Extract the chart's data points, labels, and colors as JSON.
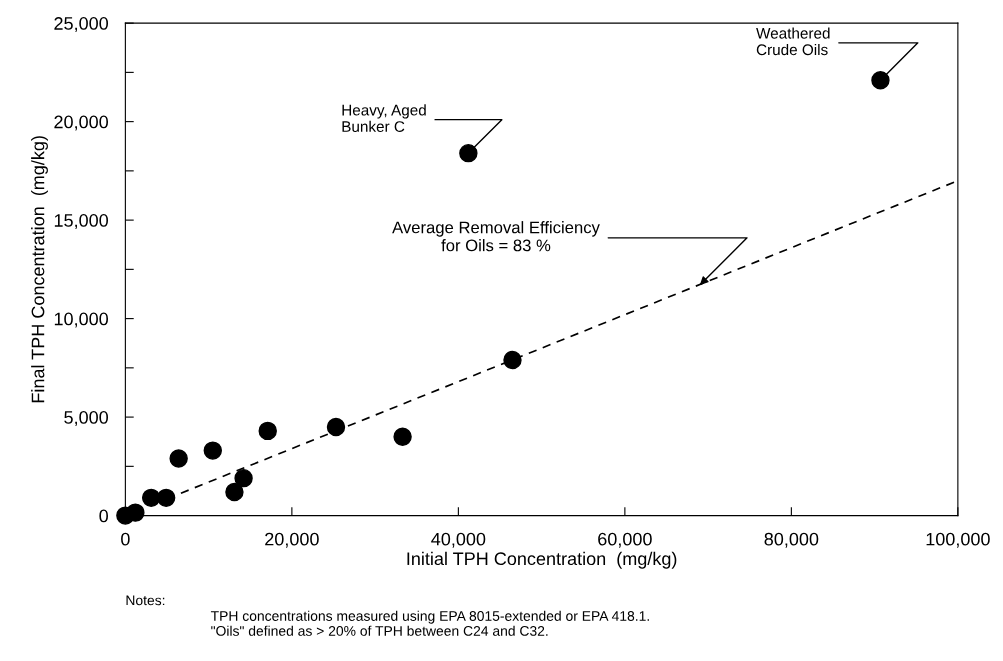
{
  "chart_data": {
    "type": "scatter",
    "xlabel": "Initial TPH Concentration  (mg/kg)",
    "ylabel": "Final TPH Concentration  (mg/kg)",
    "xlim": [
      0,
      100000
    ],
    "ylim": [
      0,
      25000
    ],
    "xticks": [
      {
        "value": 0,
        "label": "0"
      },
      {
        "value": 20000,
        "label": "20,000"
      },
      {
        "value": 40000,
        "label": "40,000"
      },
      {
        "value": 60000,
        "label": "60,000"
      },
      {
        "value": 80000,
        "label": "80,000"
      },
      {
        "value": 100000,
        "label": "100,000"
      }
    ],
    "yticks": [
      {
        "value": 0,
        "label": "0"
      },
      {
        "value": 2500,
        "label": null
      },
      {
        "value": 5000,
        "label": "5,000"
      },
      {
        "value": 7500,
        "label": null
      },
      {
        "value": 10000,
        "label": "10,000"
      },
      {
        "value": 12500,
        "label": null
      },
      {
        "value": 15000,
        "label": "15,000"
      },
      {
        "value": 17500,
        "label": null
      },
      {
        "value": 20000,
        "label": "20,000"
      },
      {
        "value": 22500,
        "label": null
      },
      {
        "value": 25000,
        "label": "25,000"
      }
    ],
    "grid": false,
    "legend": false,
    "series": [
      {
        "color": "#000000",
        "marker": "circle",
        "x": [
          0,
          1200,
          3100,
          4900,
          6400,
          10500,
          13100,
          14200,
          17100,
          25300,
          33300,
          46500,
          41200,
          90700
        ],
        "values": [
          0,
          150,
          900,
          900,
          2900,
          3300,
          1200,
          1900,
          4300,
          4500,
          4000,
          7900,
          18400,
          22100
        ]
      },
      {
        "type": "line",
        "color": "#000000",
        "marker": "none",
        "line_style": "dashed",
        "x": [
          5000,
          100000
        ],
        "values": [
          850,
          17000
        ]
      }
    ],
    "annotations": [
      {
        "text": "Heavy, Aged\nBunker C",
        "x": 41200,
        "y": 18400
      },
      {
        "text": "Weathered\nCrude Oils",
        "x": 90700,
        "y": 22100
      },
      {
        "text": "Average Removal Efficiency\nfor Oils = 83 %",
        "x": 69000,
        "y": 11700
      },
      "Notes:",
      "TPH concentrations measured using EPA 8015-extended or EPA 418.1.\n\"Oils\" defined as > 20% of TPH between C24 and C32."
    ]
  }
}
